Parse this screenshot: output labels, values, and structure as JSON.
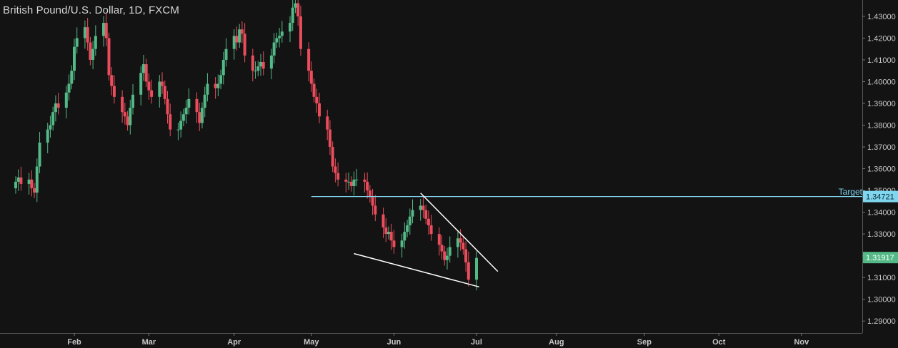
{
  "chart_title": "British Pound/U.S. Dollar, 1D, FXCM",
  "colors": {
    "background": "#131313",
    "up": "#53b987",
    "down": "#eb4d5c",
    "grid_text": "#c8c8c8",
    "target_line": "#7fd6ef",
    "trendline": "#ffffff"
  },
  "chart_data": {
    "type": "candlestick",
    "title": "British Pound/U.S. Dollar, 1D, FXCM",
    "ylim": [
      1.2845,
      1.4375
    ],
    "y_ticks": [
      "1.43000",
      "1.42000",
      "1.41000",
      "1.40000",
      "1.39000",
      "1.38000",
      "1.37000",
      "1.36000",
      "1.35000",
      "1.34000",
      "1.33000",
      "1.32000",
      "1.31000",
      "1.30000",
      "1.29000"
    ],
    "x_ticks": [
      {
        "label": "Feb",
        "date": "2018-02-01"
      },
      {
        "label": "Mar",
        "date": "2018-03-01"
      },
      {
        "label": "Apr",
        "date": "2018-04-02"
      },
      {
        "label": "May",
        "date": "2018-05-01"
      },
      {
        "label": "Jun",
        "date": "2018-06-01"
      },
      {
        "label": "Jul",
        "date": "2018-07-02"
      },
      {
        "label": "Aug",
        "date": "2018-08-01"
      },
      {
        "label": "Sep",
        "date": "2018-09-03"
      },
      {
        "label": "Oct",
        "date": "2018-10-01"
      },
      {
        "label": "Nov",
        "date": "2018-11-01"
      }
    ],
    "price_labels": {
      "target": "1.34721",
      "last": "1.31917"
    },
    "target": {
      "label": "Target",
      "value": 1.34721,
      "from": "2018-05-01",
      "to": "2018-11-30"
    },
    "last_price": 1.31917,
    "trendlines": [
      {
        "from": {
          "date": "2018-06-11",
          "price": 1.3488
        },
        "to": {
          "date": "2018-07-10",
          "price": 1.3128
        }
      },
      {
        "from": {
          "date": "2018-05-17",
          "price": 1.321
        },
        "to": {
          "date": "2018-07-03",
          "price": 1.3057
        }
      }
    ],
    "candles_close": [
      1.354,
      1.356,
      1.353,
      1.355,
      1.351,
      1.349,
      1.361,
      1.372,
      1.378,
      1.38,
      1.386,
      1.39,
      1.388,
      1.395,
      1.399,
      1.405,
      1.416,
      1.42,
      1.425,
      1.418,
      1.41,
      1.415,
      1.421,
      1.427,
      1.42,
      1.403,
      1.398,
      1.393,
      1.386,
      1.384,
      1.38,
      1.388,
      1.394,
      1.404,
      1.408,
      1.4,
      1.396,
      1.393,
      1.4,
      1.398,
      1.392,
      1.385,
      1.378,
      1.378,
      1.382,
      1.385,
      1.388,
      1.392,
      1.386,
      1.381,
      1.388,
      1.394,
      1.399,
      1.397,
      1.399,
      1.403,
      1.41,
      1.415,
      1.421,
      1.418,
      1.424,
      1.422,
      1.412,
      1.405,
      1.405,
      1.407,
      1.409,
      1.406,
      1.412,
      1.418,
      1.42,
      1.421,
      1.423,
      1.427,
      1.434,
      1.436,
      1.43,
      1.415,
      1.405,
      1.399,
      1.393,
      1.39,
      1.384,
      1.378,
      1.37,
      1.361,
      1.358,
      1.355,
      1.354,
      1.354,
      1.352,
      1.355,
      1.355,
      1.354,
      1.35,
      1.347,
      1.343,
      1.339,
      1.333,
      1.33,
      1.331,
      1.327,
      1.324,
      1.327,
      1.331,
      1.334,
      1.338,
      1.341,
      1.343,
      1.341,
      1.337,
      1.334,
      1.33,
      1.325,
      1.322,
      1.318,
      1.32,
      1.324,
      1.328,
      1.326,
      1.323,
      1.317,
      1.309,
      1.319
    ]
  }
}
